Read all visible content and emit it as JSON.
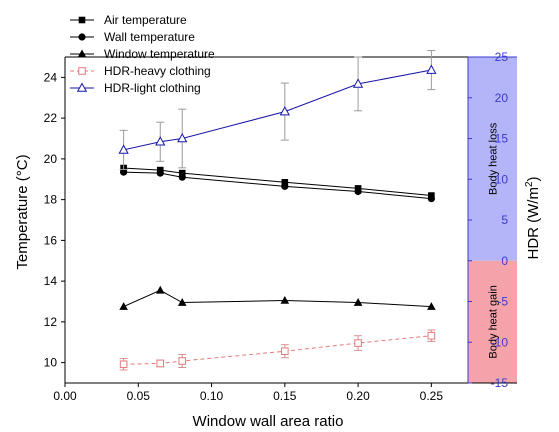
{
  "chart_data": {
    "type": "line",
    "xlabel": "Window wall area ratio",
    "ylabel_left": "Temperature (°C)",
    "ylabel_right_main": "HDR (W/m",
    "ylabel_right_sup": "2",
    "ylabel_right_end": ")",
    "x_ticks": [
      "0.00",
      "0.05",
      "0.10",
      "0.15",
      "0.20",
      "0.25"
    ],
    "x_range": [
      0.0,
      0.275
    ],
    "y_left_range": [
      9.0,
      25.0
    ],
    "y_left_ticks": [
      "10",
      "12",
      "14",
      "16",
      "18",
      "20",
      "22",
      "24"
    ],
    "y_right_range": [
      -15,
      25
    ],
    "y_right_ticks": [
      "-15",
      "-10",
      "-5",
      "0",
      "5",
      "10",
      "15",
      "20",
      "25"
    ],
    "regions": [
      {
        "label": "Body heat loss",
        "from": 0,
        "to": 25,
        "color": "#b4b4f8"
      },
      {
        "label": "Body heat gain",
        "from": -15,
        "to": 0,
        "color": "#f4a3ab"
      }
    ],
    "colors": {
      "right_axis": "#3a3ad0",
      "light": "#1515a8",
      "heavy": "#e57a7a",
      "temps": "#000000"
    },
    "series": [
      {
        "name": "Air temperature",
        "axis": "left",
        "marker": "square",
        "style": "solid",
        "color": "#000000",
        "x": [
          0.04,
          0.065,
          0.08,
          0.15,
          0.2,
          0.25
        ],
        "y": [
          19.55,
          19.45,
          19.3,
          18.85,
          18.55,
          18.2
        ]
      },
      {
        "name": "Wall temperature",
        "axis": "left",
        "marker": "circle",
        "style": "solid",
        "color": "#000000",
        "x": [
          0.04,
          0.065,
          0.08,
          0.15,
          0.2,
          0.25
        ],
        "y": [
          19.35,
          19.3,
          19.1,
          18.65,
          18.4,
          18.05
        ]
      },
      {
        "name": "Window temperature",
        "axis": "left",
        "marker": "triangle",
        "style": "solid",
        "color": "#000000",
        "x": [
          0.04,
          0.065,
          0.08,
          0.15,
          0.2,
          0.25
        ],
        "y": [
          12.75,
          13.55,
          12.95,
          13.05,
          12.95,
          12.75
        ]
      },
      {
        "name": "HDR-heavy clothing",
        "axis": "right",
        "marker": "open-square",
        "style": "dashed",
        "color": "#e57a7a",
        "x": [
          0.04,
          0.065,
          0.08,
          0.15,
          0.2,
          0.25
        ],
        "y": [
          -12.7,
          -12.6,
          -12.3,
          -11.1,
          -10.1,
          -9.2
        ],
        "err": [
          0.7,
          0.4,
          0.8,
          0.8,
          0.9,
          0.7
        ]
      },
      {
        "name": "HDR-light clothing",
        "axis": "right",
        "marker": "open-triangle",
        "style": "solid",
        "color": "#1515a8",
        "x": [
          0.04,
          0.065,
          0.08,
          0.15,
          0.2,
          0.25
        ],
        "y": [
          13.6,
          14.6,
          15.0,
          18.3,
          21.7,
          23.4
        ],
        "err": [
          2.4,
          2.4,
          3.6,
          3.5,
          3.3,
          2.4
        ]
      }
    ],
    "legend_position": "top-left"
  }
}
